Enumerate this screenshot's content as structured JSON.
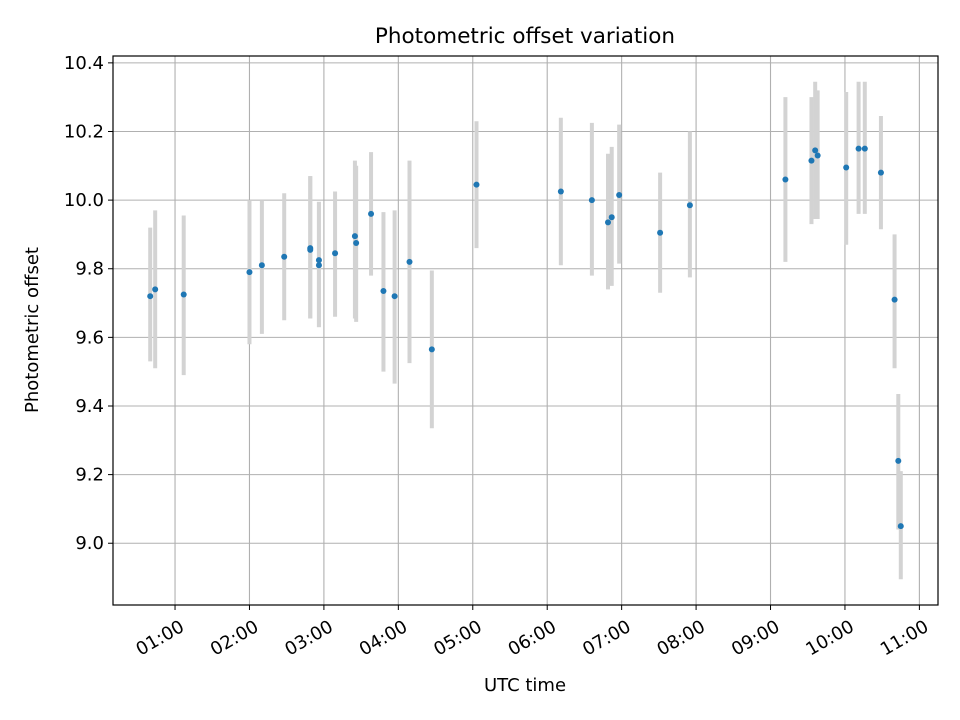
{
  "chart_data": {
    "type": "scatter",
    "title": "Photometric offset variation",
    "xlabel": "UTC time",
    "ylabel": "Photometric offset",
    "xlim": [
      "00:10",
      "11:15"
    ],
    "ylim": [
      8.82,
      10.42
    ],
    "grid": true,
    "x_ticks": [
      "01:00",
      "02:00",
      "03:00",
      "04:00",
      "05:00",
      "06:00",
      "07:00",
      "08:00",
      "09:00",
      "10:00",
      "11:00"
    ],
    "y_ticks": [
      "9.0",
      "9.2",
      "9.4",
      "9.6",
      "9.8",
      "10.0",
      "10.2",
      "10.4"
    ],
    "marker_color": "#1f77b4",
    "errorbar_color": "#d3d3d3",
    "points": [
      {
        "x": "00:40",
        "y": 9.72,
        "err_low": 9.53,
        "err_high": 9.92
      },
      {
        "x": "00:44",
        "y": 9.74,
        "err_low": 9.51,
        "err_high": 9.97
      },
      {
        "x": "01:07",
        "y": 9.725,
        "err_low": 9.49,
        "err_high": 9.955
      },
      {
        "x": "02:00",
        "y": 9.79,
        "err_low": 9.58,
        "err_high": 10.0
      },
      {
        "x": "02:10",
        "y": 9.81,
        "err_low": 9.61,
        "err_high": 10.0
      },
      {
        "x": "02:28",
        "y": 9.835,
        "err_low": 9.65,
        "err_high": 10.02
      },
      {
        "x": "02:49",
        "y": 9.86,
        "err_low": 9.655,
        "err_high": 10.07
      },
      {
        "x": "02:49",
        "y": 9.855,
        "err_low": 9.655,
        "err_high": 10.07
      },
      {
        "x": "02:56",
        "y": 9.81,
        "err_low": 9.63,
        "err_high": 9.995
      },
      {
        "x": "02:56",
        "y": 9.825,
        "err_low": 9.63,
        "err_high": 9.995
      },
      {
        "x": "03:09",
        "y": 9.845,
        "err_low": 9.66,
        "err_high": 10.025
      },
      {
        "x": "03:25",
        "y": 9.895,
        "err_low": 9.655,
        "err_high": 10.115
      },
      {
        "x": "03:26",
        "y": 9.875,
        "err_low": 9.645,
        "err_high": 10.1
      },
      {
        "x": "03:38",
        "y": 9.96,
        "err_low": 9.78,
        "err_high": 10.14
      },
      {
        "x": "03:48",
        "y": 9.735,
        "err_low": 9.5,
        "err_high": 9.965
      },
      {
        "x": "03:57",
        "y": 9.72,
        "err_low": 9.465,
        "err_high": 9.97
      },
      {
        "x": "04:09",
        "y": 9.82,
        "err_low": 9.525,
        "err_high": 10.115
      },
      {
        "x": "04:27",
        "y": 9.565,
        "err_low": 9.335,
        "err_high": 9.795
      },
      {
        "x": "05:03",
        "y": 10.045,
        "err_low": 9.86,
        "err_high": 10.23
      },
      {
        "x": "06:11",
        "y": 10.025,
        "err_low": 9.81,
        "err_high": 10.24
      },
      {
        "x": "06:36",
        "y": 10.0,
        "err_low": 9.78,
        "err_high": 10.225
      },
      {
        "x": "06:49",
        "y": 9.935,
        "err_low": 9.74,
        "err_high": 10.135
      },
      {
        "x": "06:52",
        "y": 9.95,
        "err_low": 9.75,
        "err_high": 10.155
      },
      {
        "x": "06:58",
        "y": 10.015,
        "err_low": 9.815,
        "err_high": 10.22
      },
      {
        "x": "07:31",
        "y": 9.905,
        "err_low": 9.73,
        "err_high": 10.08
      },
      {
        "x": "07:55",
        "y": 9.985,
        "err_low": 9.775,
        "err_high": 10.2
      },
      {
        "x": "09:12",
        "y": 10.06,
        "err_low": 9.82,
        "err_high": 10.3
      },
      {
        "x": "09:33",
        "y": 10.115,
        "err_low": 9.93,
        "err_high": 10.3
      },
      {
        "x": "09:36",
        "y": 10.145,
        "err_low": 9.945,
        "err_high": 10.345
      },
      {
        "x": "09:38",
        "y": 10.13,
        "err_low": 9.945,
        "err_high": 10.32
      },
      {
        "x": "10:01",
        "y": 10.095,
        "err_low": 9.87,
        "err_high": 10.315
      },
      {
        "x": "10:11",
        "y": 10.15,
        "err_low": 9.96,
        "err_high": 10.345
      },
      {
        "x": "10:16",
        "y": 10.15,
        "err_low": 9.96,
        "err_high": 10.345
      },
      {
        "x": "10:29",
        "y": 10.08,
        "err_low": 9.915,
        "err_high": 10.245
      },
      {
        "x": "10:40",
        "y": 9.71,
        "err_low": 9.51,
        "err_high": 9.9
      },
      {
        "x": "10:43",
        "y": 9.24,
        "err_low": 9.04,
        "err_high": 9.435
      },
      {
        "x": "10:45",
        "y": 9.05,
        "err_low": 8.895,
        "err_high": 9.21
      }
    ]
  }
}
